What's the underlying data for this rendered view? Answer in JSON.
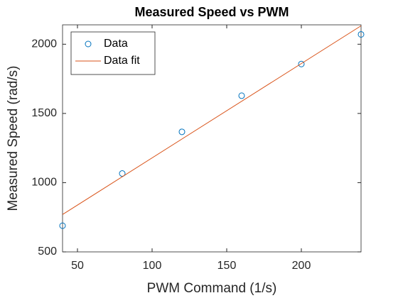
{
  "chart_data": {
    "type": "scatter",
    "title": "Measured Speed vs PWM",
    "xlabel": "PWM Command (1/s)",
    "ylabel": "Measured Speed (rad/s)",
    "series": [
      {
        "name": "Data",
        "color": "#0072BD",
        "style": "marker",
        "x": [
          40,
          80,
          120,
          160,
          200,
          240
        ],
        "values": [
          689,
          1066,
          1367,
          1628,
          1857,
          2071
        ]
      },
      {
        "name": "Data fit",
        "color": "#D95319",
        "style": "line",
        "x": [
          40,
          240
        ],
        "values": [
          770,
          2133
        ]
      }
    ],
    "xlim": [
      40,
      240
    ],
    "xticks": [
      50,
      100,
      150,
      200
    ],
    "ylim": [
      500,
      2140
    ],
    "yticks": [
      500,
      1000,
      1500,
      2000
    ],
    "legend": "northwest",
    "grid": false
  }
}
